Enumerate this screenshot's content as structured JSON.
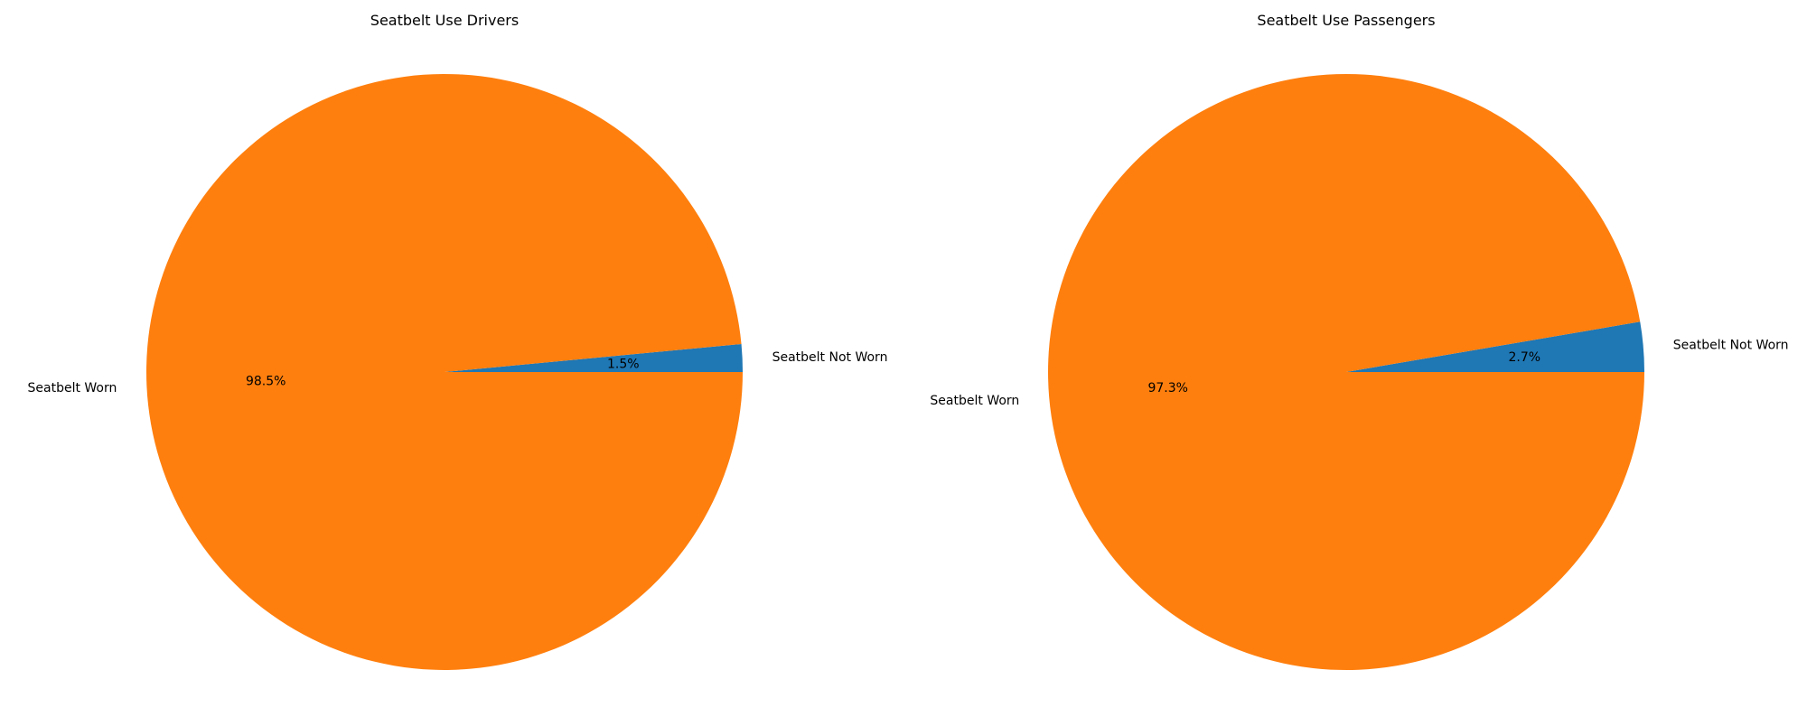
{
  "chart_data": [
    {
      "type": "pie",
      "title": "Seatbelt Use Drivers",
      "categories": [
        "Seatbelt Not Worn",
        "Seatbelt Worn"
      ],
      "values": [
        1.5,
        98.5
      ],
      "percent_labels": [
        "1.5%",
        "98.5%"
      ],
      "colors": [
        "#1f77b4",
        "#ff7f0e"
      ],
      "start_angle_deg": 0,
      "direction": "counterclockwise",
      "legend": "none"
    },
    {
      "type": "pie",
      "title": "Seatbelt Use Passengers",
      "categories": [
        "Seatbelt Not Worn",
        "Seatbelt Worn"
      ],
      "values": [
        2.7,
        97.3
      ],
      "percent_labels": [
        "2.7%",
        "97.3%"
      ],
      "colors": [
        "#1f77b4",
        "#ff7f0e"
      ],
      "start_angle_deg": 0,
      "direction": "counterclockwise",
      "legend": "none"
    }
  ]
}
